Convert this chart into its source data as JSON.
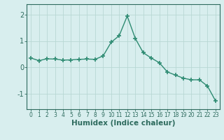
{
  "x": [
    0,
    1,
    2,
    3,
    4,
    5,
    6,
    7,
    8,
    9,
    10,
    11,
    12,
    13,
    14,
    15,
    16,
    17,
    18,
    19,
    20,
    21,
    22,
    23
  ],
  "y": [
    0.35,
    0.25,
    0.32,
    0.31,
    0.27,
    0.28,
    0.3,
    0.31,
    0.3,
    0.43,
    0.95,
    1.2,
    1.95,
    1.1,
    0.55,
    0.35,
    0.17,
    -0.18,
    -0.3,
    -0.42,
    -0.48,
    -0.48,
    -0.72,
    -1.28
  ],
  "line_color": "#2e8b72",
  "marker": "+",
  "marker_size": 5,
  "marker_lw": 1.2,
  "background_color": "#d8eeee",
  "grid_color": "#b8d8d4",
  "xlabel": "Humidex (Indice chaleur)",
  "ylim": [
    -1.6,
    2.4
  ],
  "xlim": [
    -0.5,
    23.5
  ],
  "yticks": [
    -1,
    0,
    1,
    2
  ],
  "xticks": [
    0,
    1,
    2,
    3,
    4,
    5,
    6,
    7,
    8,
    9,
    10,
    11,
    12,
    13,
    14,
    15,
    16,
    17,
    18,
    19,
    20,
    21,
    22,
    23
  ],
  "xtick_labels": [
    "0",
    "1",
    "2",
    "3",
    "4",
    "5",
    "6",
    "7",
    "8",
    "9",
    "10",
    "11",
    "12",
    "13",
    "14",
    "15",
    "16",
    "17",
    "18",
    "19",
    "20",
    "21",
    "22",
    "23"
  ],
  "tick_color": "#2e6b5e",
  "xlabel_fontsize": 7.5,
  "xtick_fontsize": 5.5,
  "ytick_fontsize": 7,
  "axis_color": "#2e6b5e",
  "linewidth": 1.0
}
